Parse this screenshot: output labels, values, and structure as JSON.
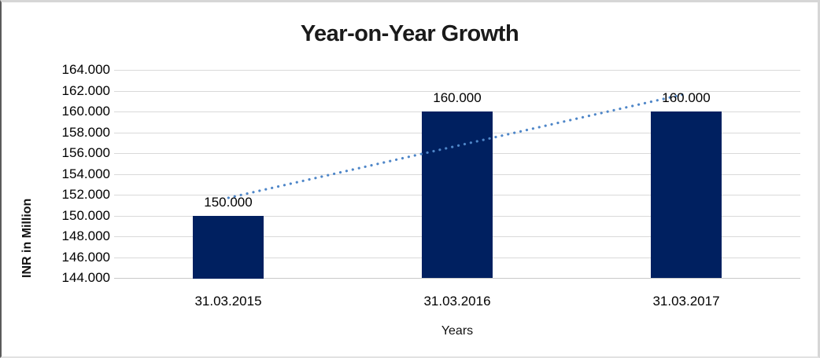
{
  "chart_data": {
    "type": "bar",
    "title": "Year-on-Year Growth",
    "xlabel": "Years",
    "ylabel": "INR in Million",
    "categories": [
      "31.03.2015",
      "31.03.2016",
      "31.03.2017"
    ],
    "values": [
      150,
      160,
      160
    ],
    "value_labels": [
      "150.000",
      "160.000",
      "160.000"
    ],
    "ylim": [
      144,
      164
    ],
    "ytick_step": 2,
    "ytick_labels_top_to_bottom": [
      "164.000",
      "162.000",
      "160.000",
      "158.000",
      "156.000",
      "154.000",
      "152.000",
      "150.000",
      "148.000",
      "146.000",
      "144.000"
    ],
    "grid": true,
    "legend": "none",
    "bar_color": "#002060",
    "trendline": {
      "type": "linear",
      "style": "dotted",
      "color": "#4e86c8",
      "start_value": 151.7,
      "end_value": 161.7
    }
  }
}
